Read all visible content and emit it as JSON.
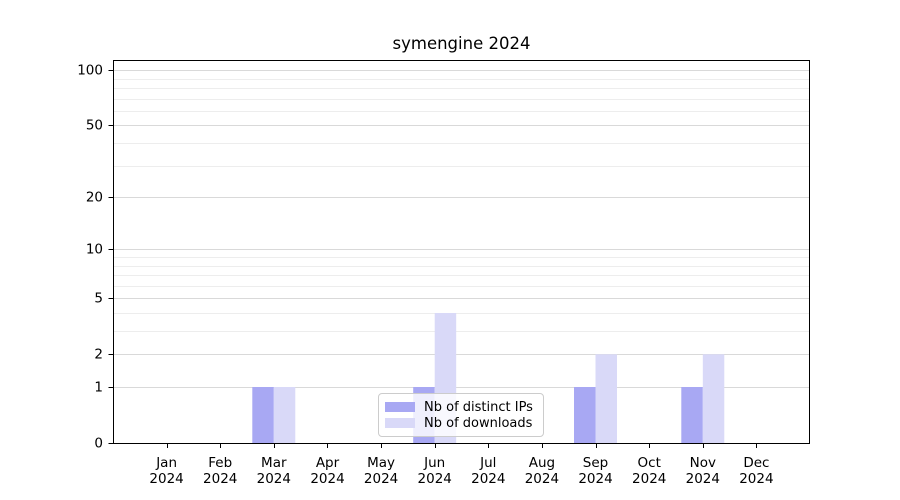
{
  "chart_data": {
    "type": "bar",
    "title": "symengine 2024",
    "categories": [
      "Jan 2024",
      "Feb 2024",
      "Mar 2024",
      "Apr 2024",
      "May 2024",
      "Jun 2024",
      "Jul 2024",
      "Aug 2024",
      "Sep 2024",
      "Oct 2024",
      "Nov 2024",
      "Dec 2024"
    ],
    "x": {
      "months": [
        "Jan",
        "Feb",
        "Mar",
        "Apr",
        "May",
        "Jun",
        "Jul",
        "Aug",
        "Sep",
        "Oct",
        "Nov",
        "Dec"
      ],
      "year": "2024"
    },
    "series": [
      {
        "name": "Nb of distinct IPs",
        "color": "#a8a8f3",
        "values": [
          0,
          0,
          1,
          0,
          0,
          1,
          0,
          0,
          1,
          0,
          1,
          0
        ]
      },
      {
        "name": "Nb of downloads",
        "color": "#d9d9f8",
        "values": [
          0,
          0,
          1,
          0,
          0,
          4,
          0,
          0,
          2,
          0,
          2,
          0
        ]
      }
    ],
    "yscale": "log1p",
    "ylim": [
      0,
      113.6
    ],
    "yticks": [
      0,
      1,
      2,
      5,
      10,
      20,
      50,
      100
    ],
    "yticks_minor": [
      3,
      4,
      6,
      7,
      8,
      9,
      30,
      40,
      60,
      70,
      80,
      90
    ],
    "grid": true,
    "legend": {
      "position": "lower center"
    },
    "colors": {
      "grid_major": "#d9d9d9",
      "grid_minor": "#ededed",
      "axis": "#000000",
      "bar_distinct_ips": "#a8a8f3",
      "bar_downloads": "#d9d9f8"
    }
  }
}
